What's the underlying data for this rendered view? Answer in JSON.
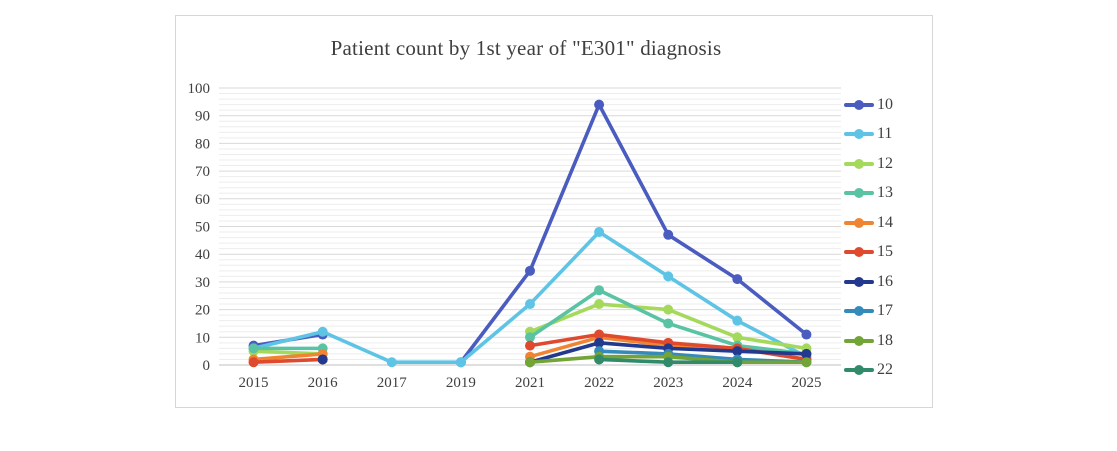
{
  "chart": {
    "title": "Patient count by 1st year of \"E301\" diagnosis"
  },
  "chart_data": {
    "type": "line",
    "title": "Patient count by 1st year of \"E301\" diagnosis",
    "xlabel": "",
    "ylabel": "",
    "categories": [
      "2015",
      "2016",
      "2017",
      "2019",
      "2021",
      "2022",
      "2023",
      "2024",
      "2025"
    ],
    "series": [
      {
        "name": "10",
        "color": "#4A5CBF",
        "values": [
          7,
          11,
          null,
          1,
          34,
          94,
          47,
          31,
          11
        ]
      },
      {
        "name": "11",
        "color": "#5EC4E6",
        "values": [
          6,
          12,
          1,
          1,
          22,
          48,
          32,
          16,
          3
        ]
      },
      {
        "name": "12",
        "color": "#A5D95C",
        "values": [
          5,
          4,
          null,
          null,
          12,
          22,
          20,
          10,
          6
        ]
      },
      {
        "name": "13",
        "color": "#59C3A3",
        "values": [
          6,
          6,
          null,
          null,
          10,
          27,
          15,
          7,
          4
        ]
      },
      {
        "name": "14",
        "color": "#EF8532",
        "values": [
          2,
          4,
          null,
          null,
          3,
          10,
          7,
          6,
          2
        ]
      },
      {
        "name": "15",
        "color": "#DF4A2E",
        "values": [
          1,
          2,
          null,
          null,
          7,
          11,
          8,
          6,
          2
        ]
      },
      {
        "name": "16",
        "color": "#22398E",
        "values": [
          null,
          2,
          null,
          null,
          1,
          8,
          6,
          5,
          4
        ]
      },
      {
        "name": "17",
        "color": "#338ABB",
        "values": [
          null,
          null,
          null,
          null,
          null,
          5,
          4,
          2,
          1
        ]
      },
      {
        "name": "18",
        "color": "#73A437",
        "values": [
          null,
          null,
          null,
          null,
          1,
          3,
          3,
          1,
          1
        ]
      },
      {
        "name": "22",
        "color": "#318B6B",
        "values": [
          null,
          null,
          null,
          null,
          null,
          2,
          1,
          1,
          null
        ]
      }
    ],
    "ylim": [
      0,
      100
    ],
    "y_major_step": 10,
    "y_minor_step": 2,
    "y_tick_labels": [
      "0",
      "10",
      "20",
      "30",
      "40",
      "50",
      "60",
      "70",
      "80",
      "90",
      "100"
    ],
    "grid": true,
    "legend_position": "right",
    "style": {
      "major_gridline_color": "#d9d9d9",
      "minor_gridline_color": "#ededed",
      "axis_line_color": "#bfbfbf",
      "text_color": "#404040",
      "title_color": "#3f3f3f"
    }
  }
}
